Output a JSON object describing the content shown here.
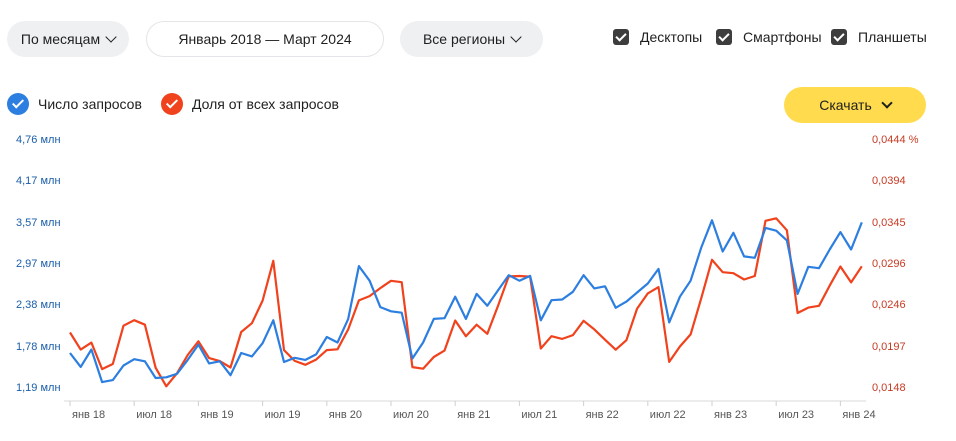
{
  "filters": {
    "period": "По месяцам",
    "range": "Январь 2018 — Март 2024",
    "region": "Все регионы",
    "devices": [
      {
        "label": "Десктопы",
        "checked": true
      },
      {
        "label": "Смартфоны",
        "checked": true
      },
      {
        "label": "Планшеты",
        "checked": true
      }
    ]
  },
  "legend": {
    "queries": {
      "label": "Число запросов",
      "color": "#2c7ee0"
    },
    "share": {
      "label": "Доля от всех запросов",
      "color": "#f0421c"
    }
  },
  "download_label": "Скачать",
  "icons": [
    "chevron-down-icon",
    "checkbox-checked-icon",
    "legend-check-icon"
  ],
  "chart_data": {
    "type": "line",
    "x_start": "Январь 2018",
    "x_labels": [
      "янв 18",
      "июл 18",
      "янв 19",
      "июл 19",
      "янв 20",
      "июл 20",
      "янв 21",
      "июл 21",
      "янв 22",
      "июл 22",
      "янв 23",
      "июл 23",
      "янв 24"
    ],
    "y_left_ticks": [
      "4,76 млн",
      "4,17 млн",
      "3,57 млн",
      "2,97 млн",
      "2,38 млн",
      "1,78 млн",
      "1,19 млн"
    ],
    "y_right_ticks": [
      "0,0444 %",
      "0,0394",
      "0,0345",
      "0,0296",
      "0,0246",
      "0,0197",
      "0,0148"
    ],
    "y_left_range": [
      1.19,
      4.76
    ],
    "y_right_range": [
      0.0148,
      0.0444
    ],
    "grid": false,
    "series": [
      {
        "name": "Число запросов",
        "axis": "left",
        "values": [
          1.68,
          1.48,
          1.73,
          1.26,
          1.29,
          1.5,
          1.59,
          1.56,
          1.32,
          1.33,
          1.38,
          1.58,
          1.8,
          1.53,
          1.56,
          1.36,
          1.68,
          1.63,
          1.82,
          2.15,
          1.55,
          1.61,
          1.58,
          1.66,
          1.91,
          1.83,
          2.17,
          2.93,
          2.72,
          2.34,
          2.28,
          2.26,
          1.6,
          1.83,
          2.17,
          2.18,
          2.49,
          2.17,
          2.53,
          2.36,
          2.58,
          2.8,
          2.72,
          2.79,
          2.15,
          2.44,
          2.45,
          2.56,
          2.8,
          2.61,
          2.64,
          2.33,
          2.42,
          2.55,
          2.68,
          2.89,
          2.12,
          2.49,
          2.72,
          3.2,
          3.59,
          3.14,
          3.41,
          3.07,
          3.05,
          3.48,
          3.44,
          3.3,
          2.53,
          2.92,
          2.9,
          3.17,
          3.42,
          3.17,
          3.56
        ]
      },
      {
        "name": "Доля от всех запросов",
        "axis": "right",
        "values": [
          0.0213,
          0.01926,
          0.0201,
          0.01694,
          0.01754,
          0.02212,
          0.02277,
          0.02223,
          0.0171,
          0.01488,
          0.01643,
          0.01862,
          0.02025,
          0.01825,
          0.01789,
          0.01713,
          0.02136,
          0.02241,
          0.02511,
          0.02986,
          0.0192,
          0.01791,
          0.01745,
          0.01807,
          0.01921,
          0.0193,
          0.02168,
          0.02514,
          0.02565,
          0.0266,
          0.02748,
          0.02731,
          0.01717,
          0.01699,
          0.01838,
          0.01914,
          0.02274,
          0.02086,
          0.02224,
          0.02115,
          0.02448,
          0.028,
          0.02805,
          0.02798,
          0.01939,
          0.02086,
          0.02054,
          0.02099,
          0.0227,
          0.02167,
          0.02044,
          0.01925,
          0.02039,
          0.02416,
          0.02597,
          0.02672,
          0.0178,
          0.01963,
          0.02108,
          0.02541,
          0.02998,
          0.0285,
          0.02838,
          0.02763,
          0.02805,
          0.03464,
          0.03493,
          0.0335,
          0.02363,
          0.02428,
          0.02449,
          0.0269,
          0.02918,
          0.02729,
          0.02921
        ]
      }
    ]
  }
}
